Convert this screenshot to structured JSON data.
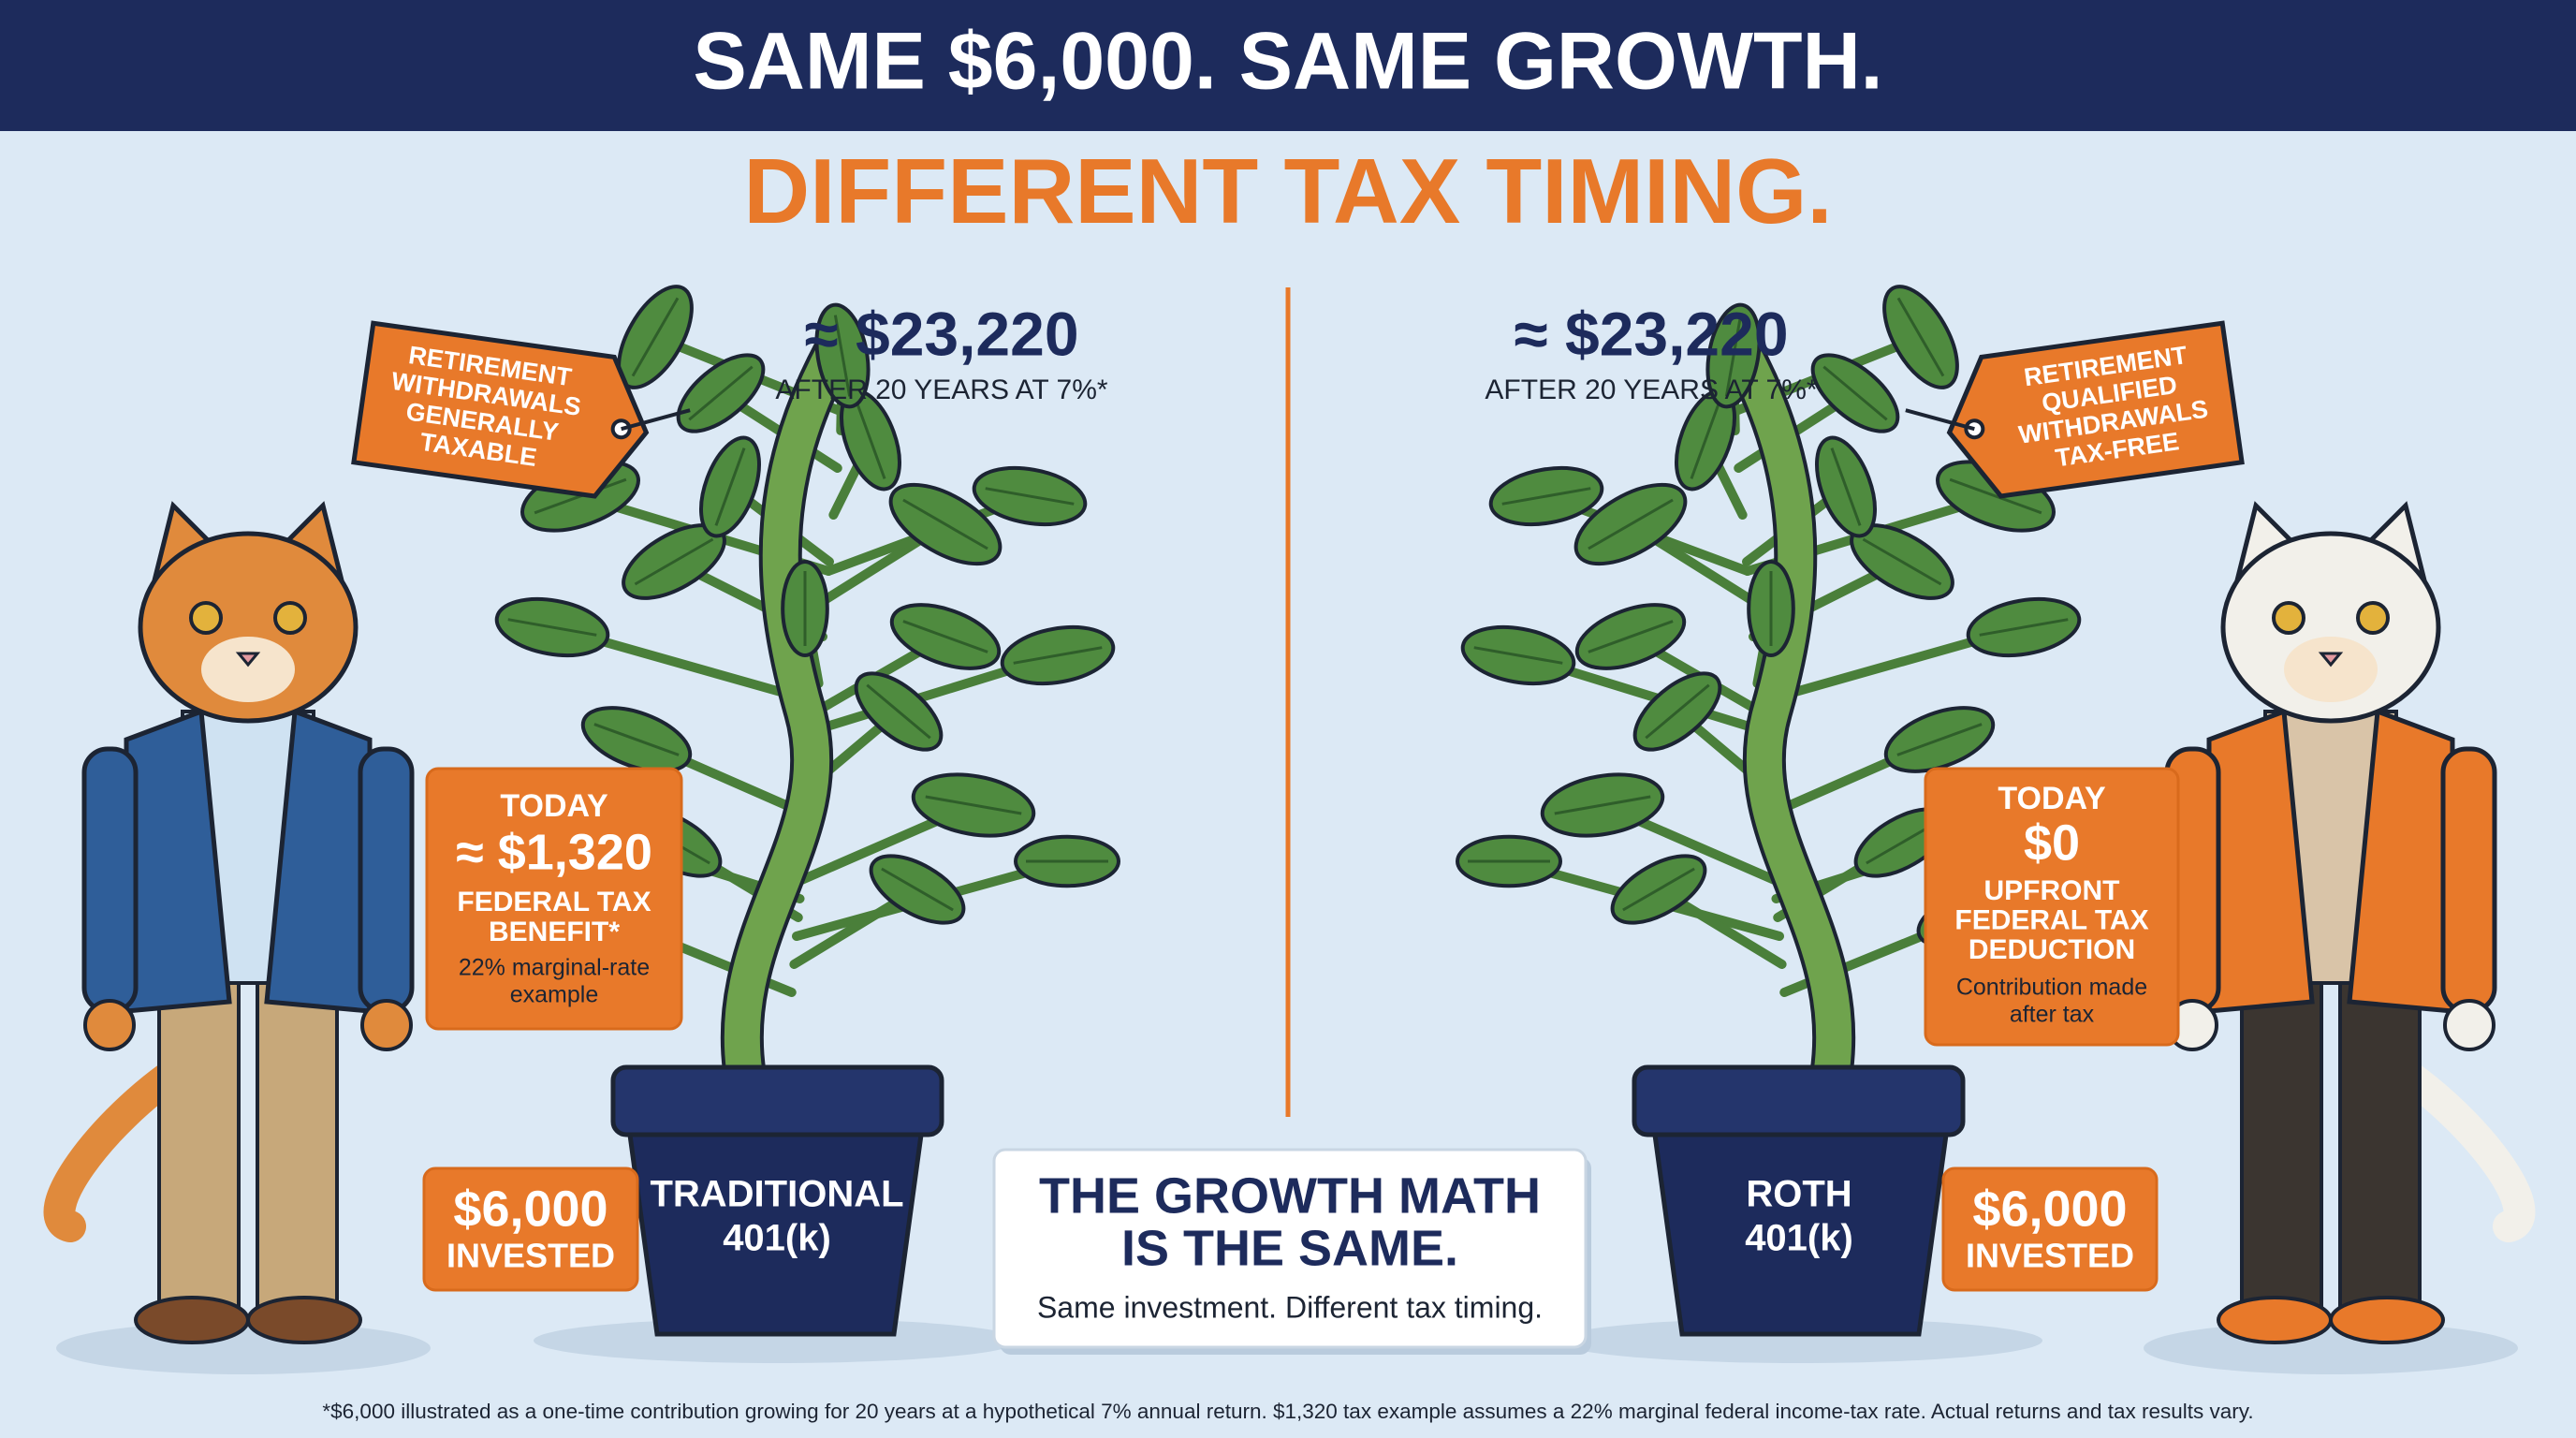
{
  "header": {
    "title": "SAME $6,000. SAME GROWTH.",
    "subtitle": "DIFFERENT TAX TIMING."
  },
  "traditional": {
    "tag": [
      "RETIREMENT",
      "WITHDRAWALS",
      "GENERALLY",
      "TAXABLE"
    ],
    "growth": {
      "amount": "≈ $23,220",
      "note": "AFTER 20 YEARS AT 7%*"
    },
    "today": {
      "label": "TODAY",
      "amount": "≈ $1,320",
      "lines": [
        "FEDERAL TAX",
        "BENEFIT*"
      ],
      "note": [
        "22% marginal-rate",
        "example"
      ]
    },
    "invested": {
      "amount": "$6,000",
      "label": "INVESTED"
    },
    "pot": [
      "TRADITIONAL",
      "401(k)"
    ]
  },
  "roth": {
    "tag": [
      "RETIREMENT",
      "QUALIFIED",
      "WITHDRAWALS",
      "TAX-FREE"
    ],
    "growth": {
      "amount": "≈ $23,220",
      "note": "AFTER 20 YEARS AT 7%*"
    },
    "today": {
      "label": "TODAY",
      "amount": "$0",
      "lines": [
        "UPFRONT",
        "FEDERAL TAX",
        "DEDUCTION"
      ],
      "note": [
        "Contribution made",
        "after tax"
      ]
    },
    "invested": {
      "amount": "$6,000",
      "label": "INVESTED"
    },
    "pot": [
      "ROTH",
      "401(k)"
    ]
  },
  "summary": {
    "title": [
      "THE GROWTH MATH",
      "IS THE SAME."
    ],
    "text": "Same investment. Different tax timing."
  },
  "footnote": "*$6,000 illustrated as a one-time contribution growing for 20 years at a hypothetical 7% annual return. $1,320 tax example assumes a 22% marginal federal income-tax rate. Actual returns and tax results vary."
}
